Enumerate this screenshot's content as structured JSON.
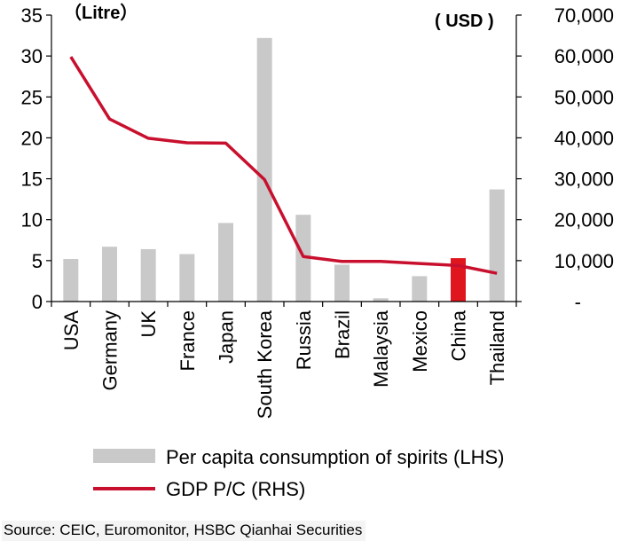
{
  "chart_data": {
    "type": "bar",
    "categories": [
      "USA",
      "Germany",
      "UK",
      "France",
      "Japan",
      "South Korea",
      "Russia",
      "Brazil",
      "Malaysia",
      "Mexico",
      "China",
      "Thailand"
    ],
    "series": [
      {
        "name": "Per capita consumption of spirits (LHS)",
        "type": "bar",
        "axis": "left",
        "values": [
          5.2,
          6.7,
          6.4,
          5.8,
          9.6,
          32.2,
          10.6,
          4.5,
          0.4,
          3.1,
          5.3,
          13.7
        ],
        "color": "#c9c9c9",
        "highlight": {
          "category": "China",
          "color": "#e0161e"
        }
      },
      {
        "name": "GDP P/C (RHS)",
        "type": "line",
        "axis": "right",
        "values": [
          59800,
          44600,
          39900,
          38800,
          38700,
          29800,
          11000,
          9800,
          9800,
          9300,
          8800,
          6900
        ],
        "color": "#c8102e"
      }
    ],
    "left_axis": {
      "unit": "（Litre）",
      "min": 0,
      "max": 35,
      "ticks": [
        0,
        5,
        10,
        15,
        20,
        25,
        30,
        35
      ]
    },
    "right_axis": {
      "unit": "( USD )",
      "min": 0,
      "max": 70000,
      "tick_labels": [
        "-",
        "10,000",
        "20,000",
        "30,000",
        "40,000",
        "50,000",
        "60,000",
        "70,000"
      ]
    },
    "grid": false,
    "legend": "bottom"
  },
  "source": "Source: CEIC, Euromonitor, HSBC Qianhai Securities"
}
